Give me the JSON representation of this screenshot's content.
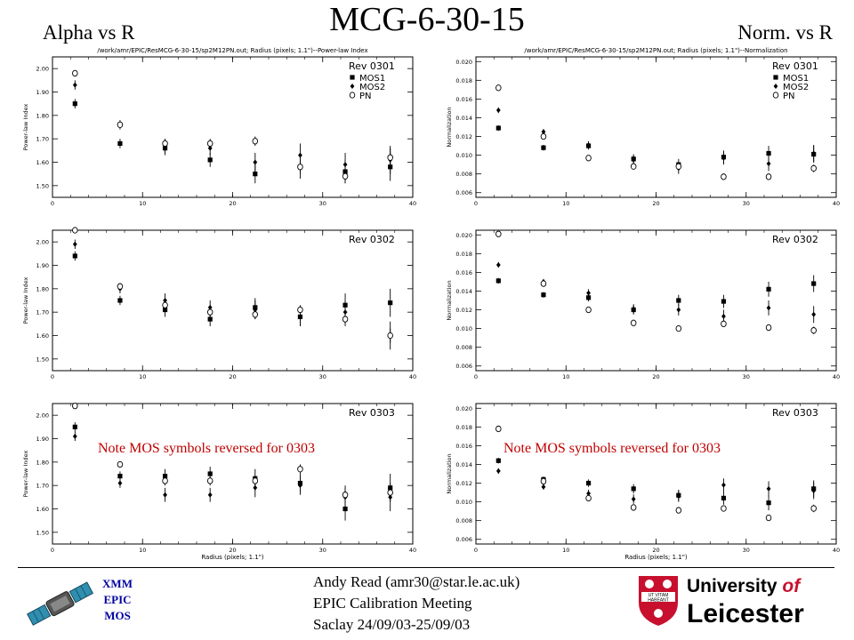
{
  "slide": {
    "title": "MCG-6-30-15",
    "left_heading": "Alpha vs R",
    "right_heading": "Norm. vs R",
    "note": "Note MOS symbols reversed for 0303",
    "logo_text": [
      "XMM",
      "EPIC",
      "MOS"
    ],
    "footer_lines": [
      "Andy Read (amr30@star.le.ac.uk)",
      "EPIC Calibration Meeting",
      "Saclay 24/09/03-25/09/03"
    ],
    "university": [
      "University",
      "of",
      "Leicester"
    ],
    "crest_motto": [
      "UT VITAM",
      "HABEANT"
    ]
  },
  "chart_data": [
    {
      "id": "alpha-0301",
      "type": "scatter",
      "measure": "alpha",
      "header": "/work/amr/EPIC/ResMCG-6-30-15/sp2M12PN.out; Radius (pixels; 1.1\")--Power-law Index",
      "ylabel": "Power-law Index",
      "xlabel": "",
      "xlim": [
        0,
        40
      ],
      "ylim": [
        1.45,
        2.05
      ],
      "xticks": [
        "0",
        "10",
        "20",
        "30",
        "40"
      ],
      "yticks": [
        "1.50",
        "1.60",
        "1.70",
        "1.80",
        "1.90",
        "2.00"
      ],
      "rev": "Rev 0301",
      "legend": [
        "MOS1",
        "MOS2",
        "PN"
      ],
      "note": false,
      "x": [
        2.5,
        7.5,
        12.5,
        17.5,
        22.5,
        27.5,
        32.5,
        37.5
      ],
      "series": [
        {
          "name": "MOS1",
          "marker": "square",
          "values": [
            1.85,
            1.68,
            1.66,
            1.61,
            1.55,
            1.58,
            1.56,
            1.58
          ],
          "errors": [
            0.02,
            0.02,
            0.03,
            0.03,
            0.04,
            0.05,
            0.05,
            0.06
          ]
        },
        {
          "name": "MOS2",
          "marker": "diamond",
          "values": [
            1.93,
            1.76,
            1.67,
            1.66,
            1.6,
            1.63,
            1.59,
            1.61
          ],
          "errors": [
            0.02,
            0.02,
            0.03,
            0.03,
            0.04,
            0.05,
            0.05,
            0.06
          ]
        },
        {
          "name": "PN",
          "marker": "circle",
          "values": [
            1.98,
            1.76,
            1.68,
            1.68,
            1.69,
            1.58,
            1.54,
            1.62
          ],
          "errors": [
            0.01,
            0.01,
            0.02,
            0.02,
            0.02,
            0.03,
            0.03,
            0.04
          ]
        }
      ]
    },
    {
      "id": "norm-0301",
      "type": "scatter",
      "measure": "norm",
      "header": "/work/amr/EPIC/ResMCG-6-30-15/sp2M12PN.out; Radius (pixels; 1.1\")--Normalization",
      "ylabel": "Normalization",
      "xlabel": "",
      "xlim": [
        0,
        40
      ],
      "ylim": [
        0.0055,
        0.0205
      ],
      "xticks": [
        "0",
        "10",
        "20",
        "30",
        "40"
      ],
      "yticks": [
        "0.006",
        "0.008",
        "0.010",
        "0.012",
        "0.014",
        "0.016",
        "0.018",
        "0.020"
      ],
      "rev": "Rev 0301",
      "legend": [
        "MOS1",
        "MOS2",
        "PN"
      ],
      "note": false,
      "x": [
        2.5,
        7.5,
        12.5,
        17.5,
        22.5,
        27.5,
        32.5,
        37.5
      ],
      "series": [
        {
          "name": "MOS1",
          "marker": "square",
          "values": [
            0.0129,
            0.0108,
            0.011,
            0.0096,
            0.009,
            0.0098,
            0.0102,
            0.0101
          ],
          "errors": [
            0.0003,
            0.0003,
            0.0004,
            0.0005,
            0.0006,
            0.0007,
            0.0008,
            0.0009
          ]
        },
        {
          "name": "MOS2",
          "marker": "diamond",
          "values": [
            0.0148,
            0.0125,
            0.0111,
            0.0095,
            0.0086,
            0.0097,
            0.0091,
            0.0102
          ],
          "errors": [
            0.0003,
            0.0003,
            0.0004,
            0.0005,
            0.0006,
            0.0007,
            0.0008,
            0.0009
          ]
        },
        {
          "name": "PN",
          "marker": "circle",
          "values": [
            0.0172,
            0.012,
            0.0097,
            0.0088,
            0.0088,
            0.0077,
            0.0077,
            0.0086
          ],
          "errors": [
            0.0002,
            0.0002,
            0.0002,
            0.0003,
            0.0003,
            0.0003,
            0.0003,
            0.0004
          ]
        }
      ]
    },
    {
      "id": "alpha-0302",
      "type": "scatter",
      "measure": "alpha",
      "header": "",
      "ylabel": "Power-law Index",
      "xlabel": "",
      "xlim": [
        0,
        40
      ],
      "ylim": [
        1.45,
        2.05
      ],
      "xticks": [
        "0",
        "10",
        "20",
        "30",
        "40"
      ],
      "yticks": [
        "1.50",
        "1.60",
        "1.70",
        "1.80",
        "1.90",
        "2.00"
      ],
      "rev": "Rev 0302",
      "legend": [],
      "note": false,
      "x": [
        2.5,
        7.5,
        12.5,
        17.5,
        22.5,
        27.5,
        32.5,
        37.5
      ],
      "series": [
        {
          "name": "MOS1",
          "marker": "square",
          "values": [
            1.94,
            1.75,
            1.71,
            1.67,
            1.72,
            1.68,
            1.73,
            1.74
          ],
          "errors": [
            0.02,
            0.02,
            0.03,
            0.03,
            0.04,
            0.04,
            0.05,
            0.06
          ]
        },
        {
          "name": "MOS2",
          "marker": "diamond",
          "values": [
            1.99,
            1.8,
            1.75,
            1.72,
            1.71,
            1.68,
            1.7,
            1.6
          ],
          "errors": [
            0.02,
            0.02,
            0.03,
            0.03,
            0.04,
            0.04,
            0.05,
            0.06
          ]
        },
        {
          "name": "PN",
          "marker": "circle",
          "values": [
            2.05,
            1.81,
            1.73,
            1.7,
            1.69,
            1.71,
            1.67,
            1.6
          ],
          "errors": [
            0.01,
            0.01,
            0.02,
            0.02,
            0.02,
            0.02,
            0.03,
            0.03
          ]
        }
      ]
    },
    {
      "id": "norm-0302",
      "type": "scatter",
      "measure": "norm",
      "header": "",
      "ylabel": "Normalization",
      "xlabel": "",
      "xlim": [
        0,
        40
      ],
      "ylim": [
        0.0055,
        0.0205
      ],
      "xticks": [
        "0",
        "10",
        "20",
        "30",
        "40"
      ],
      "yticks": [
        "0.006",
        "0.008",
        "0.010",
        "0.012",
        "0.014",
        "0.016",
        "0.018",
        "0.020"
      ],
      "rev": "Rev 0302",
      "legend": [],
      "note": false,
      "x": [
        2.5,
        7.5,
        12.5,
        17.5,
        22.5,
        27.5,
        32.5,
        37.5
      ],
      "series": [
        {
          "name": "MOS1",
          "marker": "square",
          "values": [
            0.0151,
            0.0136,
            0.0133,
            0.012,
            0.013,
            0.0129,
            0.0142,
            0.0148
          ],
          "errors": [
            0.0003,
            0.0003,
            0.0004,
            0.0005,
            0.0006,
            0.0007,
            0.0008,
            0.0009
          ]
        },
        {
          "name": "MOS2",
          "marker": "diamond",
          "values": [
            0.0168,
            0.015,
            0.0138,
            0.0121,
            0.012,
            0.0113,
            0.0122,
            0.0115
          ],
          "errors": [
            0.0003,
            0.0003,
            0.0004,
            0.0005,
            0.0006,
            0.0007,
            0.0008,
            0.0009
          ]
        },
        {
          "name": "PN",
          "marker": "circle",
          "values": [
            0.0201,
            0.0148,
            0.012,
            0.0106,
            0.01,
            0.0105,
            0.0101,
            0.0098
          ],
          "errors": [
            0.0002,
            0.0002,
            0.0002,
            0.0003,
            0.0003,
            0.0003,
            0.0003,
            0.0004
          ]
        }
      ]
    },
    {
      "id": "alpha-0303",
      "type": "scatter",
      "measure": "alpha",
      "header": "",
      "ylabel": "Power-law Index",
      "xlabel": "Radius (pixels; 1.1\")",
      "xlim": [
        0,
        40
      ],
      "ylim": [
        1.45,
        2.05
      ],
      "xticks": [
        "0",
        "10",
        "20",
        "30",
        "40"
      ],
      "yticks": [
        "1.50",
        "1.60",
        "1.70",
        "1.80",
        "1.90",
        "2.00"
      ],
      "rev": "Rev 0303",
      "legend": [],
      "note": true,
      "x": [
        2.5,
        7.5,
        12.5,
        17.5,
        22.5,
        27.5,
        32.5,
        37.5
      ],
      "series": [
        {
          "name": "MOS1",
          "marker": "square",
          "values": [
            1.95,
            1.74,
            1.74,
            1.75,
            1.73,
            1.71,
            1.6,
            1.69
          ],
          "errors": [
            0.02,
            0.02,
            0.03,
            0.03,
            0.04,
            0.04,
            0.05,
            0.06
          ]
        },
        {
          "name": "MOS2",
          "marker": "diamond",
          "values": [
            1.91,
            1.71,
            1.66,
            1.66,
            1.69,
            1.7,
            1.65,
            1.65
          ],
          "errors": [
            0.02,
            0.02,
            0.03,
            0.03,
            0.04,
            0.04,
            0.05,
            0.06
          ]
        },
        {
          "name": "PN",
          "marker": "circle",
          "values": [
            2.04,
            1.79,
            1.72,
            1.72,
            1.72,
            1.77,
            1.66,
            1.67
          ],
          "errors": [
            0.01,
            0.01,
            0.02,
            0.02,
            0.02,
            0.02,
            0.03,
            0.03
          ]
        }
      ]
    },
    {
      "id": "norm-0303",
      "type": "scatter",
      "measure": "norm",
      "header": "",
      "ylabel": "Normalization",
      "xlabel": "Radius (pixels; 1.1\")",
      "xlim": [
        0,
        40
      ],
      "ylim": [
        0.0055,
        0.0205
      ],
      "xticks": [
        "0",
        "10",
        "20",
        "30",
        "40"
      ],
      "yticks": [
        "0.006",
        "0.008",
        "0.010",
        "0.012",
        "0.014",
        "0.016",
        "0.018",
        "0.020"
      ],
      "rev": "Rev 0303",
      "legend": [],
      "note": true,
      "x": [
        2.5,
        7.5,
        12.5,
        17.5,
        22.5,
        27.5,
        32.5,
        37.5
      ],
      "series": [
        {
          "name": "MOS1",
          "marker": "square",
          "values": [
            0.0144,
            0.0124,
            0.012,
            0.0114,
            0.0107,
            0.0104,
            0.0099,
            0.0114
          ],
          "errors": [
            0.0003,
            0.0003,
            0.0004,
            0.0005,
            0.0006,
            0.0007,
            0.0008,
            0.0009
          ]
        },
        {
          "name": "MOS2",
          "marker": "diamond",
          "values": [
            0.0133,
            0.0116,
            0.0109,
            0.0103,
            0.0106,
            0.0118,
            0.0114,
            0.0112
          ],
          "errors": [
            0.0003,
            0.0003,
            0.0004,
            0.0005,
            0.0006,
            0.0007,
            0.0008,
            0.0009
          ]
        },
        {
          "name": "PN",
          "marker": "circle",
          "values": [
            0.0178,
            0.0122,
            0.0104,
            0.0094,
            0.0091,
            0.0093,
            0.0083,
            0.0093
          ],
          "errors": [
            0.0002,
            0.0002,
            0.0002,
            0.0003,
            0.0003,
            0.0003,
            0.0003,
            0.0004
          ]
        }
      ]
    }
  ]
}
